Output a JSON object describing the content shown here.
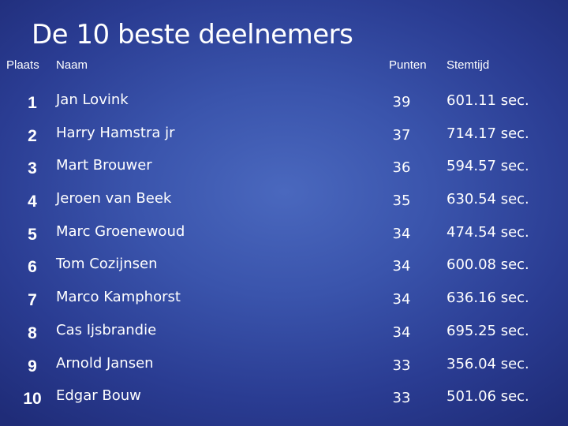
{
  "title": "De 10 beste deelnemers",
  "headers": {
    "rank": "Plaats",
    "name": "Naam",
    "points": "Punten",
    "time": "Stemtijd"
  },
  "rows": [
    {
      "rank": "1",
      "name": "Jan Lovink",
      "points": "39",
      "time": "601.11 sec."
    },
    {
      "rank": "2",
      "name": "Harry Hamstra jr",
      "points": "37",
      "time": "714.17 sec."
    },
    {
      "rank": "3",
      "name": "Mart Brouwer",
      "points": "36",
      "time": "594.57 sec."
    },
    {
      "rank": "4",
      "name": "Jeroen van Beek",
      "points": "35",
      "time": "630.54 sec."
    },
    {
      "rank": "5",
      "name": "Marc Groenewoud",
      "points": "34",
      "time": "474.54 sec."
    },
    {
      "rank": "6",
      "name": "Tom Cozijnsen",
      "points": "34",
      "time": "600.08 sec."
    },
    {
      "rank": "7",
      "name": "Marco Kamphorst",
      "points": "34",
      "time": "636.16 sec."
    },
    {
      "rank": "8",
      "name": "Cas Ijsbrandie",
      "points": "34",
      "time": "695.25 sec."
    },
    {
      "rank": "9",
      "name": "Arnold Jansen",
      "points": "33",
      "time": "356.04 sec."
    },
    {
      "rank": "10",
      "name": "Edgar Bouw",
      "points": "33",
      "time": "501.06 sec."
    }
  ]
}
